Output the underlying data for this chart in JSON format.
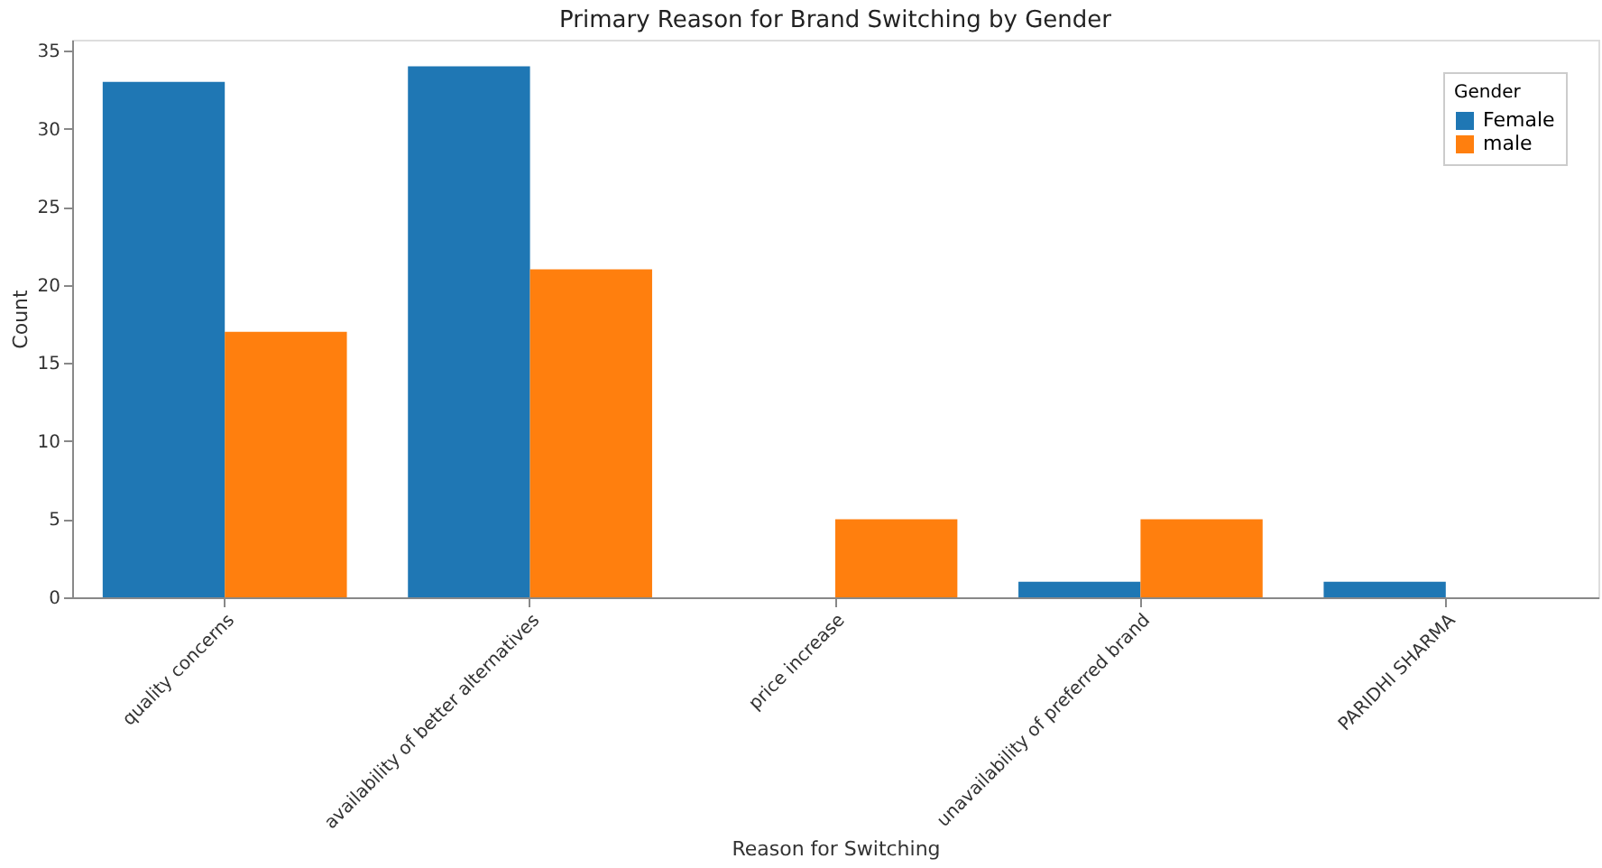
{
  "chart_data": {
    "type": "bar",
    "title": "Primary Reason for Brand Switching by Gender",
    "xlabel": "Reason for Switching",
    "ylabel": "Count",
    "legend_title": "Gender",
    "categories": [
      "quality concerns",
      "availability of better alternatives",
      "price increase",
      "unavailability of preferred brand",
      "PARIDHI SHARMA"
    ],
    "series": [
      {
        "name": "Female",
        "color": "#1f77b4",
        "values": [
          33,
          34,
          null,
          1,
          1
        ]
      },
      {
        "name": "male",
        "color": "#ff7f0e",
        "values": [
          17,
          21,
          5,
          5,
          null
        ]
      }
    ],
    "ylim": [
      0,
      35.7
    ],
    "yticks": [
      0,
      5,
      10,
      15,
      20,
      25,
      30,
      35
    ],
    "grid": false,
    "legend": "top right"
  }
}
